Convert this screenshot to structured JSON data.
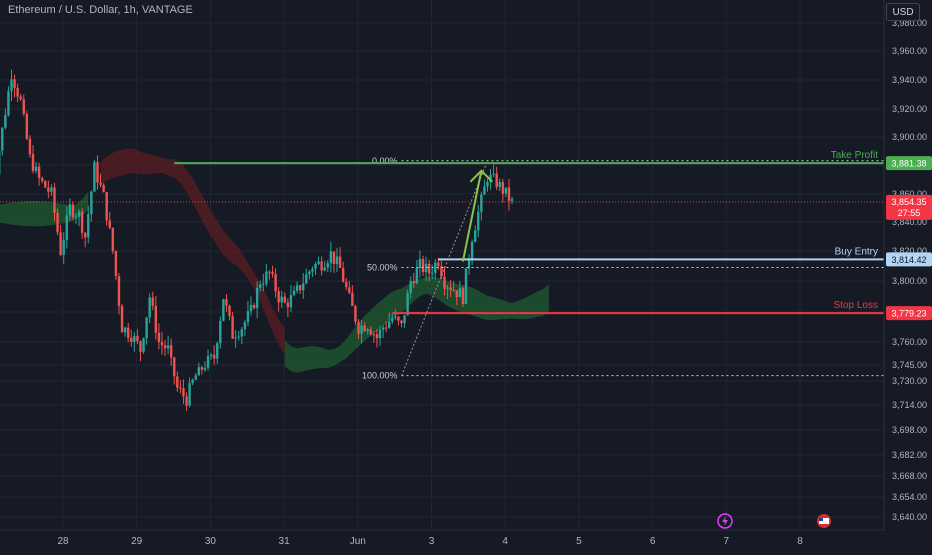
{
  "header": {
    "title": "Ethereum / U.S. Dollar, 1h, VANTAGE",
    "currency_button": "USD"
  },
  "colors": {
    "background": "#161a25",
    "grid": "#222632",
    "up_candle": "#26a69a",
    "down_candle": "#ef5350",
    "cloud_bull": "#1e5b2f",
    "cloud_bear": "#5a1e22",
    "take_profit": "#4caf50",
    "buy_entry": "#b3d4f5",
    "stop_loss": "#f23645",
    "current_price": "#f23645",
    "arrow": "#8bc34a",
    "axis_text": "#b2b5be"
  },
  "chart_data": {
    "type": "candlestick",
    "ylim": [
      3630,
      3990
    ],
    "y_ticks": [
      3640,
      3654,
      3668,
      3682,
      3698,
      3714,
      3730,
      3745,
      3760,
      3780,
      3800,
      3820,
      3840,
      3860,
      3880,
      3900,
      3920,
      3940,
      3960,
      3980
    ],
    "y_tick_labels": [
      "3,640.00",
      "3,654.00",
      "3,668.00",
      "3,682.00",
      "3,698.00",
      "3,714.00",
      "3,730.00",
      "3,745.00",
      "3,760.00",
      "3,780.00",
      "3,800.00",
      "3,820.00",
      "3,840.00",
      "3,860.00",
      "3,880.00",
      "3,900.00",
      "3,920.00",
      "3,940.00",
      "3,960.00",
      "3,980.00"
    ],
    "x_labels": [
      "28",
      "29",
      "30",
      "31",
      "Jun",
      "3",
      "4",
      "5",
      "6",
      "7",
      "8"
    ],
    "close_path": [
      [
        0,
        3850
      ],
      [
        4,
        3905
      ],
      [
        7,
        3945
      ],
      [
        10,
        3925
      ],
      [
        13,
        3885
      ],
      [
        16,
        3870
      ],
      [
        20,
        3860
      ],
      [
        23,
        3820
      ],
      [
        26,
        3850
      ],
      [
        29,
        3845
      ],
      [
        31,
        3830
      ],
      [
        34,
        3878
      ],
      [
        37,
        3858
      ],
      [
        40,
        3820
      ],
      [
        43,
        3770
      ],
      [
        46,
        3765
      ],
      [
        49,
        3755
      ],
      [
        52,
        3790
      ],
      [
        55,
        3760
      ],
      [
        58,
        3755
      ],
      [
        61,
        3725
      ],
      [
        64,
        3718
      ],
      [
        67,
        3735
      ],
      [
        70,
        3745
      ],
      [
        73,
        3750
      ],
      [
        76,
        3790
      ],
      [
        79,
        3765
      ],
      [
        82,
        3770
      ],
      [
        85,
        3780
      ],
      [
        88,
        3800
      ],
      [
        91,
        3805
      ],
      [
        94,
        3790
      ],
      [
        96,
        3785
      ],
      [
        99,
        3790
      ],
      [
        102,
        3800
      ],
      [
        105,
        3810
      ],
      [
        108,
        3812
      ],
      [
        111,
        3818
      ],
      [
        114,
        3808
      ],
      [
        117,
        3788
      ],
      [
        120,
        3770
      ],
      [
        123,
        3772
      ],
      [
        126,
        3763
      ],
      [
        128,
        3770
      ],
      [
        131,
        3776
      ],
      [
        134,
        3770
      ],
      [
        137,
        3800
      ],
      [
        140,
        3810
      ],
      [
        143,
        3806
      ],
      [
        146,
        3814
      ],
      [
        148,
        3800
      ],
      [
        151,
        3795
      ],
      [
        154,
        3790
      ],
      [
        157,
        3830
      ],
      [
        160,
        3855
      ],
      [
        162,
        3872
      ],
      [
        165,
        3868
      ],
      [
        168,
        3860
      ],
      [
        170,
        3854
      ]
    ],
    "cloud": [
      {
        "trend": "bull",
        "from_h": 0,
        "to_h": 32
      },
      {
        "trend": "bear",
        "from_h": 36,
        "to_h": 96
      },
      {
        "trend": "bull",
        "from_h": 96,
        "to_h": 182
      }
    ],
    "levels": [
      {
        "name": "Take Profit",
        "price": 3881.38,
        "label": "3,881.38"
      },
      {
        "name": "Buy Entry",
        "price": 3814.42,
        "label": "3,814.42"
      },
      {
        "name": "Stop Loss",
        "price": 3779.23,
        "label": "3,779.23"
      }
    ],
    "fib_levels": [
      {
        "label": "0.00%",
        "price": 3883
      },
      {
        "label": "50.00%",
        "price": 3809
      },
      {
        "label": "100.00%",
        "price": 3735
      }
    ],
    "current_price": {
      "value": 3854.35,
      "label": "3,854.35",
      "countdown": "27:55"
    },
    "arrow": {
      "from": {
        "x_h": 154,
        "price": 3813
      },
      "to": {
        "x_h": 160,
        "price": 3876
      }
    }
  }
}
